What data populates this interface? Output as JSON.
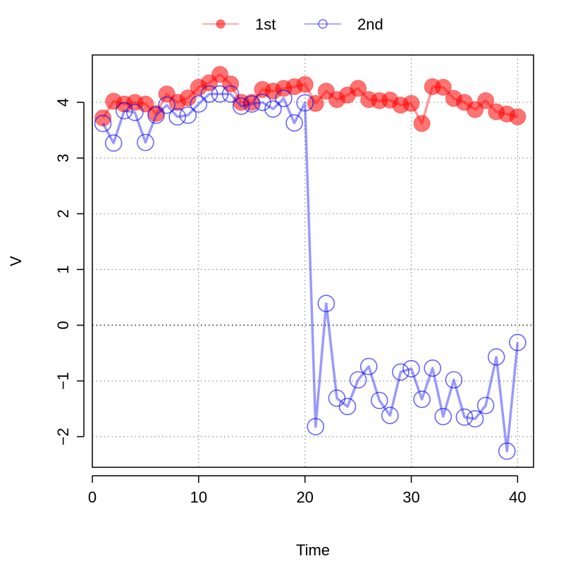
{
  "chart_data": {
    "type": "line",
    "title": "",
    "xlabel": "Time",
    "ylabel": "V",
    "xlim": [
      0,
      41.5
    ],
    "ylim": [
      -2.55,
      4.85
    ],
    "x_ticks": [
      0,
      10,
      20,
      30,
      40
    ],
    "x_tick_labels": [
      "0",
      "10",
      "20",
      "30",
      "40"
    ],
    "y_ticks": [
      -2,
      -1,
      0,
      1,
      2,
      3,
      4
    ],
    "y_tick_labels": [
      "−2",
      "−1",
      "0",
      "1",
      "2",
      "3",
      "4"
    ],
    "grid": true,
    "grid_x": [
      0,
      10,
      20,
      30,
      40
    ],
    "grid_y": [
      -2,
      -1,
      0,
      1,
      2,
      3,
      4
    ],
    "zero_line": true,
    "legend_position": "top-center",
    "x": [
      1,
      2,
      3,
      4,
      5,
      6,
      7,
      8,
      9,
      10,
      11,
      12,
      13,
      14,
      15,
      16,
      17,
      18,
      19,
      20,
      21,
      22,
      23,
      24,
      25,
      26,
      27,
      28,
      29,
      30,
      31,
      32,
      33,
      34,
      35,
      36,
      37,
      38,
      39,
      40
    ],
    "series": [
      {
        "name": "1st",
        "color": "#ff0000",
        "marker": "filled-circle",
        "values": [
          3.72,
          4.02,
          3.97,
          4.0,
          3.97,
          3.8,
          4.15,
          4.0,
          4.08,
          4.27,
          4.35,
          4.5,
          4.33,
          4.0,
          4.0,
          4.23,
          4.2,
          4.25,
          4.28,
          4.32,
          3.98,
          4.2,
          4.05,
          4.13,
          4.25,
          4.05,
          4.03,
          4.04,
          3.95,
          3.98,
          3.62,
          4.28,
          4.27,
          4.07,
          4.0,
          3.87,
          4.03,
          3.83,
          3.79,
          3.74
        ]
      },
      {
        "name": "2nd",
        "color": "#0000ff",
        "marker": "open-circle",
        "values": [
          3.62,
          3.27,
          3.85,
          3.82,
          3.28,
          3.77,
          3.95,
          3.74,
          3.77,
          3.97,
          4.15,
          4.15,
          4.15,
          3.93,
          3.97,
          4.0,
          3.88,
          4.07,
          3.63,
          3.99,
          -1.82,
          0.39,
          -1.31,
          -1.46,
          -0.98,
          -0.74,
          -1.35,
          -1.62,
          -0.84,
          -0.78,
          -1.33,
          -0.77,
          -1.64,
          -0.98,
          -1.65,
          -1.68,
          -1.44,
          -0.57,
          -2.26,
          -0.31
        ]
      }
    ]
  }
}
